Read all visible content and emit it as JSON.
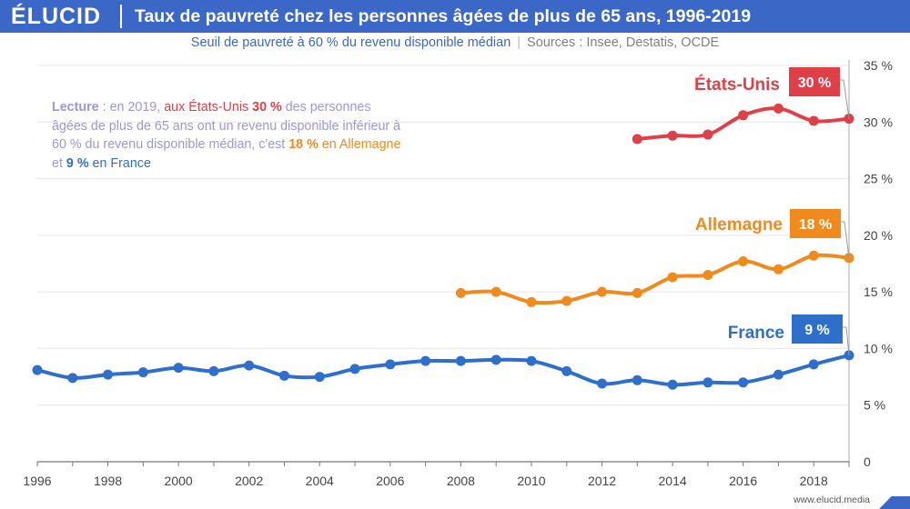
{
  "header": {
    "logo": "ÉLUCID",
    "title": "Taux de pauvreté chez les personnes âgées de plus de 65 ans, 1996-2019"
  },
  "subtitle": {
    "main": "Seuil de pauvreté à 60 % du revenu disponible médian",
    "separator": "|",
    "sources": "Sources : Insee, Destatis, OCDE"
  },
  "reading": {
    "label": "Lecture",
    "t1": " : en 2019, ",
    "us_text": "aux États-Unis ",
    "us_value": "30 %",
    "t2": " des personnes âgées de plus de 65 ans ont un revenu disponible inférieur à 60 % du revenu disponible médian, c'est ",
    "de_value": "18 %",
    "de_text": " en Allemagne",
    "t3": " et ",
    "fr_value": "9 %",
    "fr_text": " en France"
  },
  "footer": {
    "url": "www.elucid.media"
  },
  "colors": {
    "brand": "#3b67c6",
    "us": "#df3f47",
    "de": "#f08a1c",
    "fr": "#2f6fcc",
    "grid": "#e6e6e6",
    "axis": "#777777"
  },
  "chart_data": {
    "type": "line",
    "title": "Taux de pauvreté chez les personnes âgées de plus de 65 ans, 1996-2019",
    "xlim": [
      1996,
      2019
    ],
    "ylim": [
      0,
      35
    ],
    "x_ticks": [
      1996,
      1998,
      2000,
      2002,
      2004,
      2006,
      2008,
      2010,
      2012,
      2014,
      2016,
      2018
    ],
    "x_tick_labels": [
      "1996",
      "1998",
      "2000",
      "2002",
      "2004",
      "2006",
      "2008",
      "2010",
      "2012",
      "2014",
      "2016",
      "2018"
    ],
    "y_ticks": [
      0,
      5,
      10,
      15,
      20,
      25,
      30,
      35
    ],
    "y_tick_labels": [
      "0",
      "5 %",
      "10 %",
      "15 %",
      "20 %",
      "25 %",
      "30 %",
      "35 %"
    ],
    "grid": true,
    "series": [
      {
        "key": "us",
        "name": "États-Unis",
        "end_label": "30 %",
        "x": [
          2013,
          2014,
          2015,
          2016,
          2017,
          2018,
          2019
        ],
        "values": [
          28.5,
          28.8,
          28.9,
          30.6,
          31.2,
          30.1,
          30.3
        ]
      },
      {
        "key": "de",
        "name": "Allemagne",
        "end_label": "18 %",
        "x": [
          2008,
          2009,
          2010,
          2011,
          2012,
          2013,
          2014,
          2015,
          2016,
          2017,
          2018,
          2019
        ],
        "values": [
          14.9,
          15.0,
          14.1,
          14.2,
          15.0,
          14.9,
          16.3,
          16.5,
          17.7,
          17.0,
          18.2,
          18.0
        ]
      },
      {
        "key": "fr",
        "name": "France",
        "end_label": "9 %",
        "x": [
          1996,
          1997,
          1998,
          1999,
          2000,
          2001,
          2002,
          2003,
          2004,
          2005,
          2006,
          2007,
          2008,
          2009,
          2010,
          2011,
          2012,
          2013,
          2014,
          2015,
          2016,
          2017,
          2018,
          2019
        ],
        "values": [
          8.1,
          7.4,
          7.7,
          7.9,
          8.3,
          8.0,
          8.5,
          7.6,
          7.5,
          8.2,
          8.6,
          8.9,
          8.9,
          9.0,
          8.9,
          8.0,
          6.9,
          7.2,
          6.8,
          7.0,
          7.0,
          7.7,
          8.6,
          9.4
        ]
      }
    ]
  }
}
